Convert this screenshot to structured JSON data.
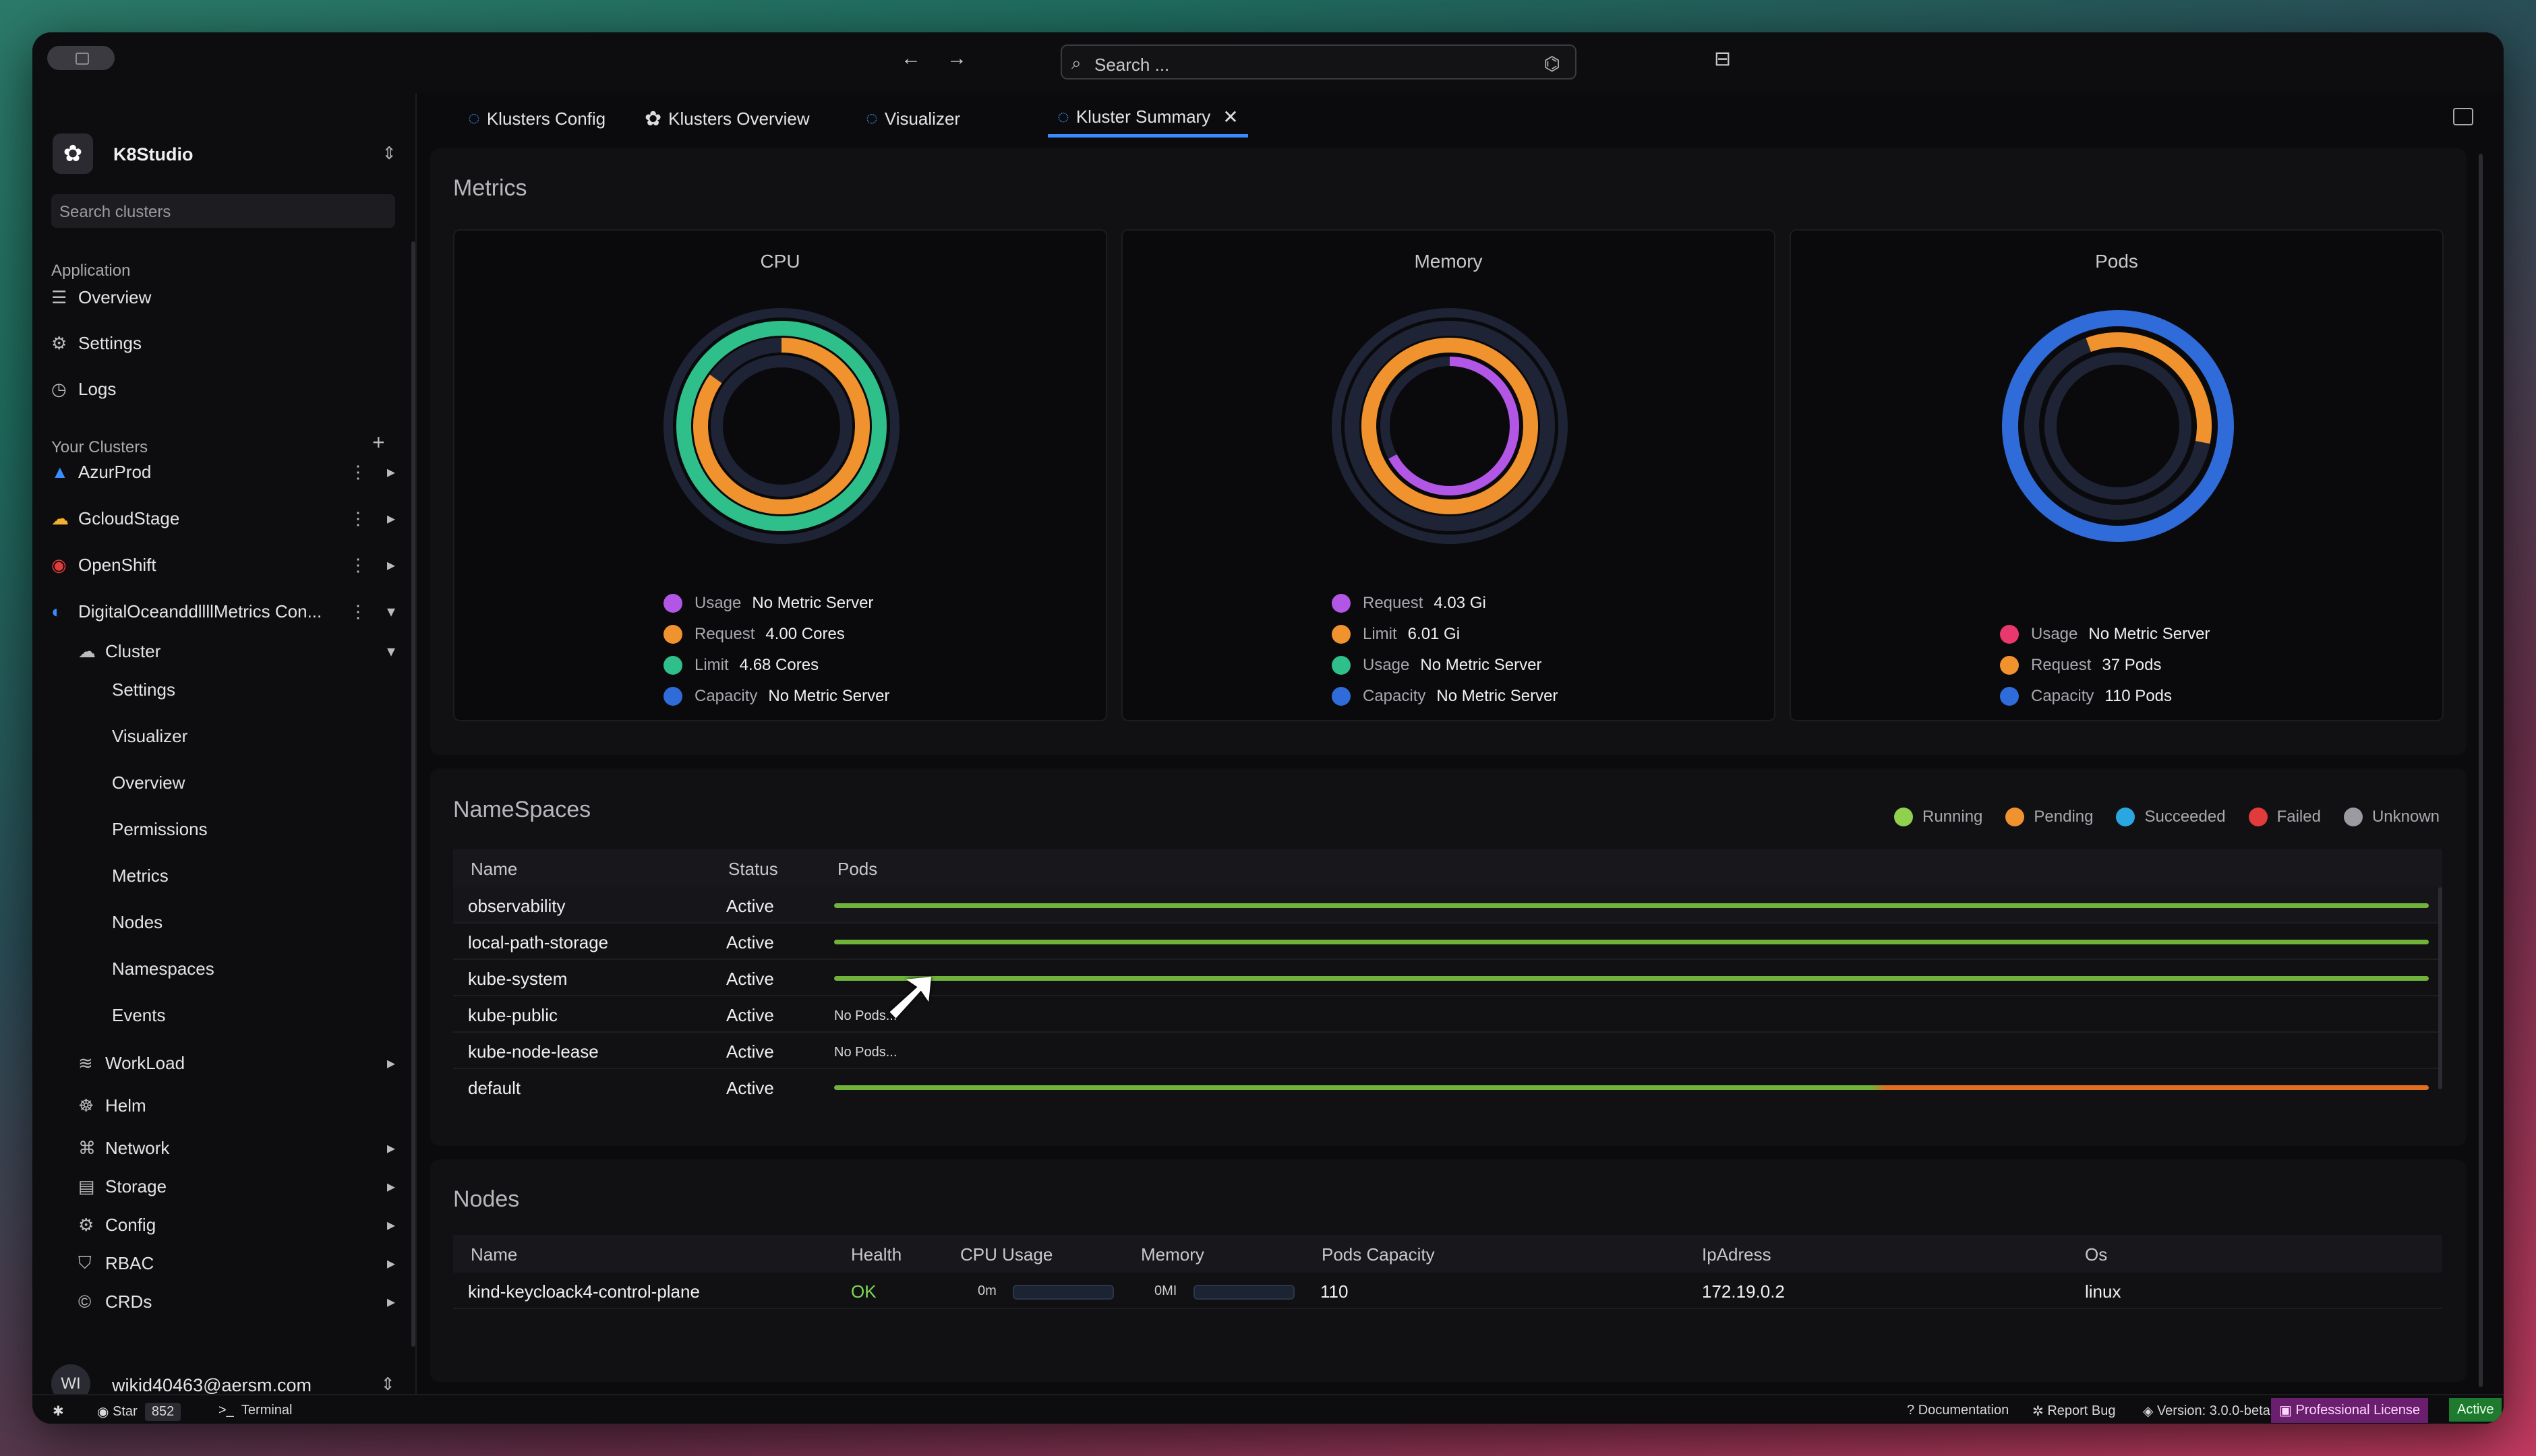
{
  "colors": {
    "accent": "#3a8dff",
    "purple": "#b256e6",
    "orange": "#f0922e",
    "green": "#2fbf8b",
    "blue": "#2f6bd9",
    "pink": "#e8386d",
    "running": "#8fd14f",
    "succeeded": "#2aa7e0",
    "failed": "#e23b3b",
    "unknown": "#9a9aa0"
  },
  "topbar": {
    "search_placeholder": "Search ..."
  },
  "sidebar": {
    "app_name": "K8Studio",
    "search_placeholder": "Search clusters",
    "application_label": "Application",
    "app_items": [
      "Overview",
      "Settings",
      "Logs"
    ],
    "clusters_label": "Your Clusters",
    "clusters": [
      "AzurProd",
      "GcloudStage",
      "OpenShift",
      "DigitalOceanddllllMetrics Con..."
    ],
    "cluster_group": "Cluster",
    "cluster_sub": [
      "Settings",
      "Visualizer",
      "Overview",
      "Permissions",
      "Metrics",
      "Nodes",
      "Namespaces",
      "Events"
    ],
    "groups": [
      "WorkLoad",
      "Helm",
      "Network",
      "Storage",
      "Config",
      "RBAC",
      "CRDs"
    ],
    "user_initials": "WI",
    "user_email": "wikid40463@aersm.com"
  },
  "tabs": [
    "Klusters Config",
    "Klusters Overview",
    "Visualizer",
    "Kluster Summary"
  ],
  "metrics": {
    "title": "Metrics",
    "cpu": {
      "title": "CPU",
      "legend": [
        {
          "k": "Usage",
          "v": "No Metric Server"
        },
        {
          "k": "Request",
          "v": "4.00 Cores"
        },
        {
          "k": "Limit",
          "v": "4.68 Cores"
        },
        {
          "k": "Capacity",
          "v": "No Metric Server"
        }
      ]
    },
    "memory": {
      "title": "Memory",
      "legend": [
        {
          "k": "Request",
          "v": "4.03 Gi"
        },
        {
          "k": "Limit",
          "v": "6.01 Gi"
        },
        {
          "k": "Usage",
          "v": "No Metric Server"
        },
        {
          "k": "Capacity",
          "v": "No Metric Server"
        }
      ]
    },
    "pods": {
      "title": "Pods",
      "legend": [
        {
          "k": "Usage",
          "v": "No Metric Server"
        },
        {
          "k": "Request",
          "v": "37 Pods"
        },
        {
          "k": "Capacity",
          "v": "110 Pods"
        }
      ]
    }
  },
  "namespaces": {
    "title": "NameSpaces",
    "legend": [
      "Running",
      "Pending",
      "Succeeded",
      "Failed",
      "Unknown"
    ],
    "headers": [
      "Name",
      "Status",
      "Pods"
    ],
    "rows": [
      {
        "name": "observability",
        "status": "Active",
        "pods": ""
      },
      {
        "name": "local-path-storage",
        "status": "Active",
        "pods": ""
      },
      {
        "name": "kube-system",
        "status": "Active",
        "pods": ""
      },
      {
        "name": "kube-public",
        "status": "Active",
        "pods": "No Pods..."
      },
      {
        "name": "kube-node-lease",
        "status": "Active",
        "pods": "No Pods..."
      },
      {
        "name": "default",
        "status": "Active",
        "pods": ""
      }
    ]
  },
  "nodes": {
    "title": "Nodes",
    "headers": [
      "Name",
      "Health",
      "CPU Usage",
      "Memory",
      "Pods Capacity",
      "IpAdress",
      "Os"
    ],
    "rows": [
      {
        "name": "kind-keycloack4-control-plane",
        "health": "OK",
        "cpu": "0m",
        "mem": "0MI",
        "pods": "110",
        "ip": "172.19.0.2",
        "os": "linux"
      }
    ]
  },
  "status": {
    "star": "Star",
    "star_count": "852",
    "terminal": "Terminal",
    "docs": "Documentation",
    "bug": "Report Bug",
    "version": "Version: 3.0.0-beta",
    "license": "Professional License",
    "active": "Active"
  }
}
